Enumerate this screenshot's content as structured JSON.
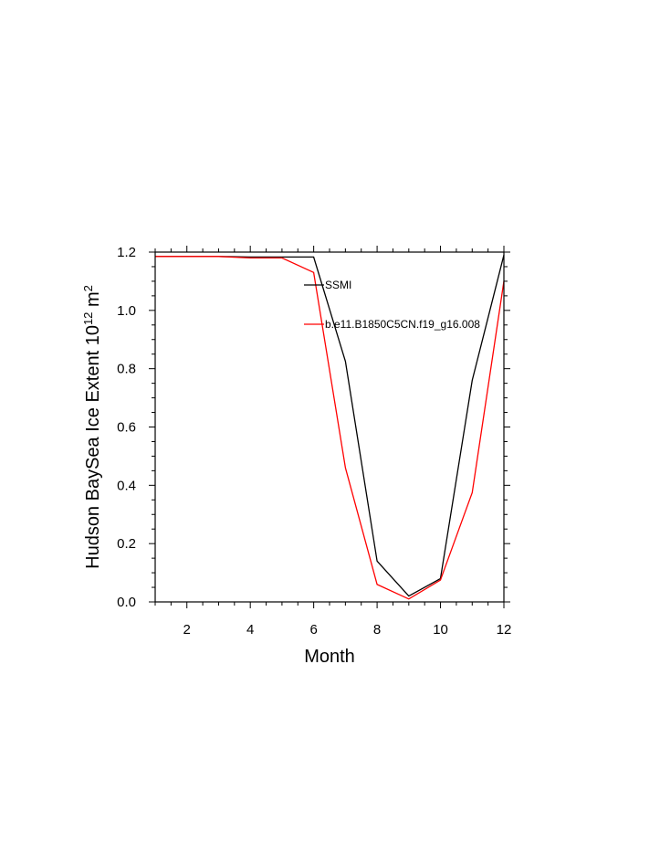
{
  "chart_data": {
    "type": "line",
    "title": "",
    "xlabel": "Month",
    "ylabel": {
      "main": "Hudson BaySea Ice Extent 10",
      "exp1": "12",
      "mid": " m",
      "exp2": "2"
    },
    "xlim": [
      1,
      12
    ],
    "ylim": [
      0.0,
      1.2
    ],
    "x_ticks": [
      2,
      4,
      6,
      8,
      10,
      12
    ],
    "y_ticks": [
      "0.0",
      "0.2",
      "0.4",
      "0.6",
      "0.8",
      "1.0",
      "1.2"
    ],
    "grid": false,
    "legend_position": "inside-top-center",
    "x": [
      1,
      2,
      3,
      4,
      5,
      6,
      7,
      8,
      9,
      10,
      11,
      12
    ],
    "series": [
      {
        "name": "SSMI",
        "color": "#000000",
        "values": [
          1.185,
          1.185,
          1.185,
          1.183,
          1.183,
          1.183,
          0.825,
          0.14,
          0.02,
          0.08,
          0.76,
          1.19
        ]
      },
      {
        "name": "b.e11.B1850C5CN.f19_g16.008",
        "color": "#ff0000",
        "values": [
          1.185,
          1.185,
          1.185,
          1.18,
          1.18,
          1.13,
          0.46,
          0.06,
          0.01,
          0.075,
          0.375,
          1.1
        ]
      }
    ]
  }
}
